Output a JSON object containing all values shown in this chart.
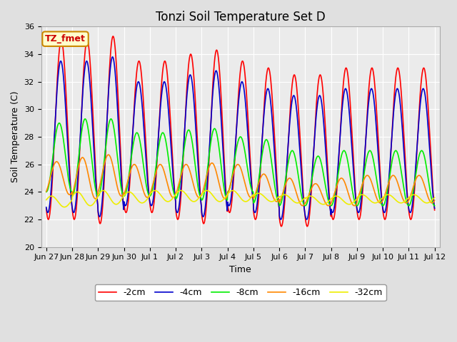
{
  "title": "Tonzi Soil Temperature Set D",
  "xlabel": "Time",
  "ylabel": "Soil Temperature (C)",
  "ylim": [
    20,
    36
  ],
  "legend_label": "TZ_fmet",
  "series_labels": [
    "-2cm",
    "-4cm",
    "-8cm",
    "-16cm",
    "-32cm"
  ],
  "series_colors": [
    "#ff0000",
    "#0000cc",
    "#00ee00",
    "#ff8800",
    "#eeee00"
  ],
  "series_linewidths": [
    1.2,
    1.2,
    1.2,
    1.2,
    1.2
  ],
  "background_color": "#e0e0e0",
  "plot_bg_color": "#ebebeb",
  "title_fontsize": 12,
  "axis_label_fontsize": 9,
  "tick_fontsize": 8,
  "legend_fontsize": 9,
  "xtick_labels": [
    "Jun 27",
    "Jun 28",
    "Jun 29",
    "Jun 30",
    "Jul 1",
    "Jul 2",
    "Jul 3",
    "Jul 4",
    "Jul 5",
    "Jul 6",
    "Jul 7",
    "Jul 8",
    "Jul 9",
    "Jul 10",
    "Jul 11",
    "Jul 12"
  ],
  "xtick_positions": [
    0,
    1,
    2,
    3,
    4,
    5,
    6,
    7,
    8,
    9,
    10,
    11,
    12,
    13,
    14,
    15
  ],
  "mean_all": 28.5,
  "amp_2cm": [
    6.5,
    6.5,
    6.8,
    5.5,
    5.5,
    6.0,
    6.3,
    5.5,
    5.5,
    5.5,
    5.5,
    5.5,
    5.5,
    5.5,
    5.5,
    5.5
  ],
  "amp_4cm": [
    5.5,
    5.5,
    5.8,
    4.5,
    4.5,
    5.0,
    5.3,
    4.5,
    4.5,
    4.5,
    4.5,
    4.5,
    4.5,
    4.5,
    4.5,
    4.5
  ],
  "amp_8cm": [
    2.5,
    2.8,
    2.8,
    2.3,
    2.3,
    2.5,
    2.6,
    2.0,
    2.3,
    2.0,
    1.8,
    2.0,
    2.0,
    2.0,
    2.0,
    2.0
  ],
  "amp_16cm": [
    1.2,
    1.5,
    1.5,
    1.2,
    1.2,
    1.2,
    1.3,
    1.2,
    1.0,
    1.0,
    0.8,
    1.0,
    1.0,
    1.0,
    1.0,
    1.0
  ],
  "amp_32cm": [
    0.4,
    0.5,
    0.5,
    0.4,
    0.4,
    0.4,
    0.4,
    0.4,
    0.3,
    0.3,
    0.3,
    0.3,
    0.3,
    0.3,
    0.3,
    0.3
  ],
  "mean_2cm": [
    28.5,
    28.5,
    28.5,
    28.0,
    28.0,
    28.0,
    28.0,
    28.0,
    27.5,
    27.0,
    27.0,
    27.5,
    27.5,
    27.5,
    27.5,
    27.5
  ],
  "mean_4cm": [
    28.0,
    28.0,
    28.0,
    27.5,
    27.5,
    27.5,
    27.5,
    27.5,
    27.0,
    26.5,
    26.5,
    27.0,
    27.0,
    27.0,
    27.0,
    27.0
  ],
  "mean_8cm": [
    26.5,
    26.5,
    26.5,
    26.0,
    26.0,
    26.0,
    26.0,
    26.0,
    25.5,
    25.0,
    24.8,
    25.0,
    25.0,
    25.0,
    25.0,
    25.0
  ],
  "mean_16cm": [
    25.0,
    25.0,
    25.2,
    24.8,
    24.8,
    24.8,
    24.8,
    24.8,
    24.3,
    24.0,
    23.8,
    24.0,
    24.2,
    24.2,
    24.2,
    24.2
  ],
  "mean_32cm": [
    23.3,
    23.5,
    23.6,
    23.6,
    23.7,
    23.7,
    23.7,
    23.7,
    23.6,
    23.5,
    23.4,
    23.4,
    23.5,
    23.5,
    23.5,
    23.5
  ],
  "phase_lags": [
    0.0,
    0.02,
    0.08,
    0.18,
    0.38
  ]
}
